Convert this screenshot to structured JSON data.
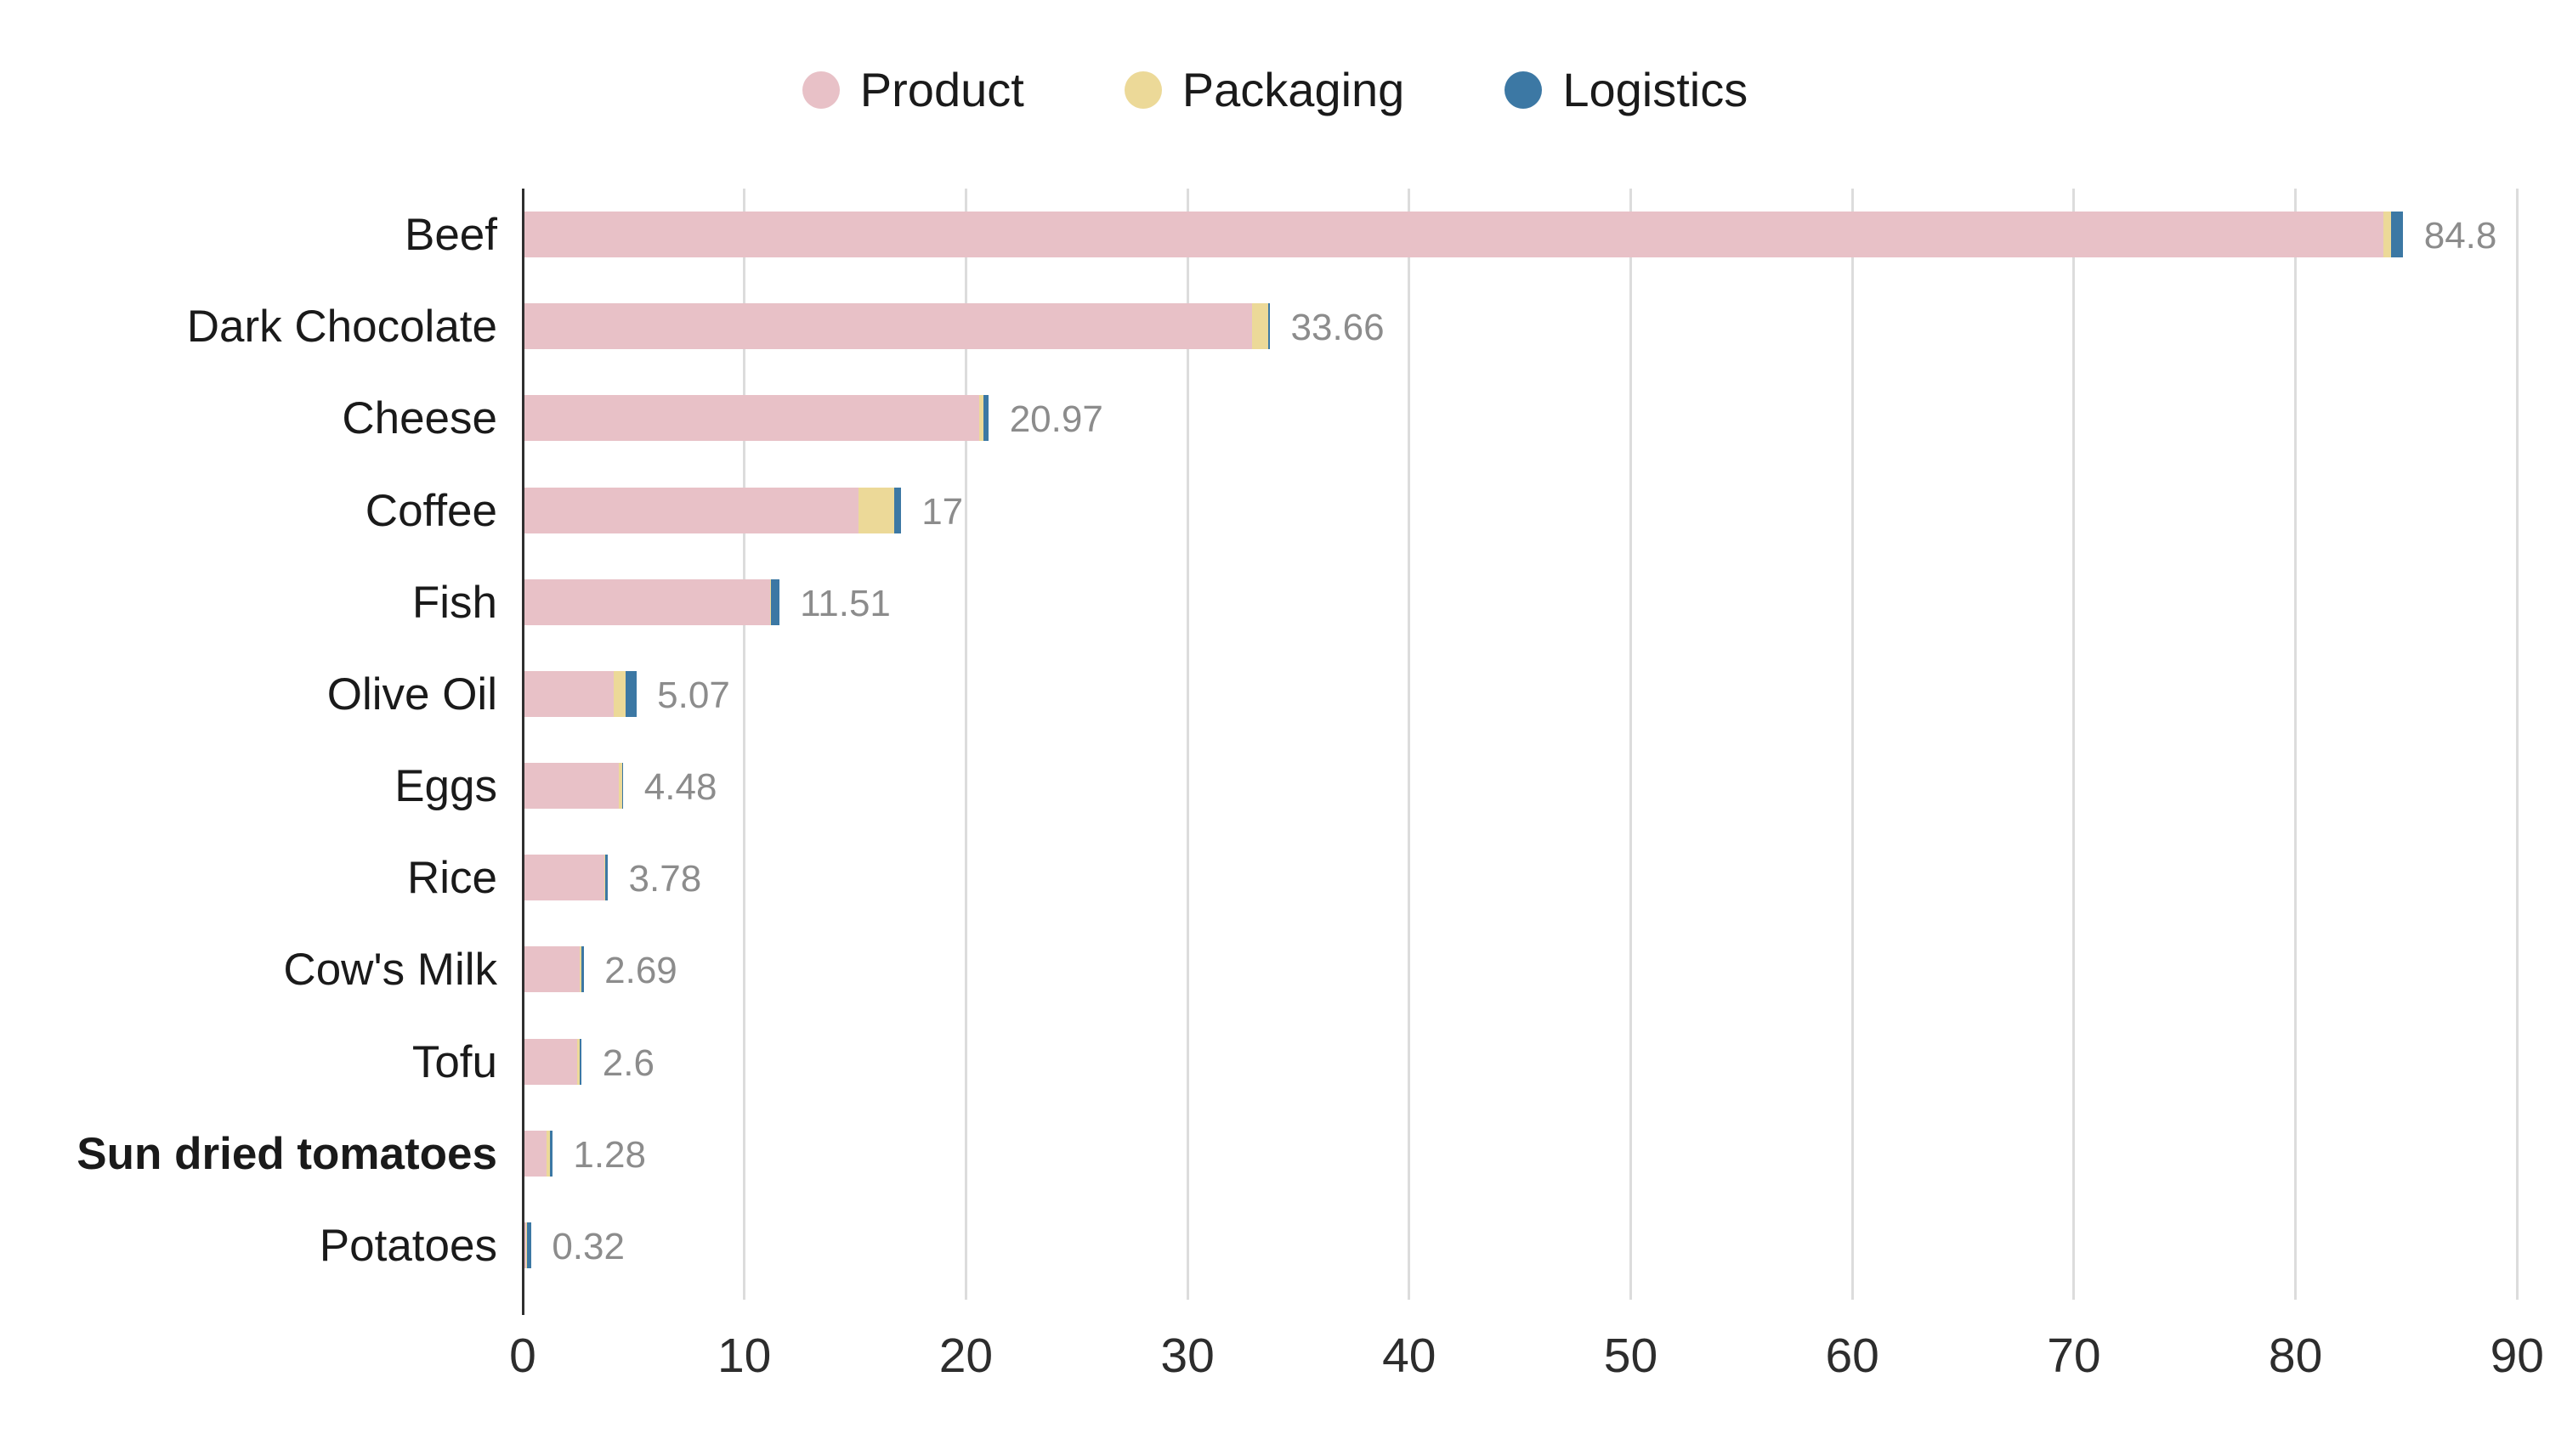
{
  "chart_data": {
    "type": "bar",
    "orientation": "horizontal",
    "stacked": true,
    "title": "",
    "xlabel": "",
    "ylabel": "",
    "categories": [
      "Beef",
      "Dark Chocolate",
      "Cheese",
      "Coffee",
      "Fish",
      "Olive Oil",
      "Eggs",
      "Rice",
      "Cow's Milk",
      "Tofu",
      "Sun dried tomatoes",
      "Potatoes"
    ],
    "bold_categories": [
      "Sun dried tomatoes"
    ],
    "series": [
      {
        "name": "Product",
        "color": "#e8c1c7",
        "values": [
          83.9,
          32.85,
          20.55,
          15.1,
          11.1,
          4.05,
          4.28,
          3.62,
          2.53,
          2.4,
          1.02,
          0.09
        ]
      },
      {
        "name": "Packaging",
        "color": "#ecd998",
        "values": [
          0.35,
          0.75,
          0.17,
          1.6,
          0.06,
          0.55,
          0.16,
          0.06,
          0.06,
          0.13,
          0.14,
          0.04
        ]
      },
      {
        "name": "Logistics",
        "color": "#3c78a4",
        "values": [
          0.55,
          0.06,
          0.25,
          0.3,
          0.35,
          0.47,
          0.04,
          0.1,
          0.1,
          0.07,
          0.12,
          0.19
        ]
      }
    ],
    "totals": [
      84.8,
      33.66,
      20.97,
      17,
      11.51,
      5.07,
      4.48,
      3.78,
      2.69,
      2.6,
      1.28,
      0.32
    ],
    "total_labels": [
      "84.8",
      "33.66",
      "20.97",
      "17",
      "11.51",
      "5.07",
      "4.48",
      "3.78",
      "2.69",
      "2.6",
      "1.28",
      "0.32"
    ],
    "xlim": [
      0,
      90
    ],
    "xticks": [
      0,
      10,
      20,
      30,
      40,
      50,
      60,
      70,
      80,
      90
    ],
    "grid": "vertical",
    "legend_position": "top"
  },
  "colors": {
    "background": "#ffffff",
    "gridline": "#dcdcdc",
    "axis_line": "#2f2f2f",
    "category_label": "#1a1a1a",
    "tick_label": "#2d2d2d",
    "value_label": "#8c8c8c"
  }
}
